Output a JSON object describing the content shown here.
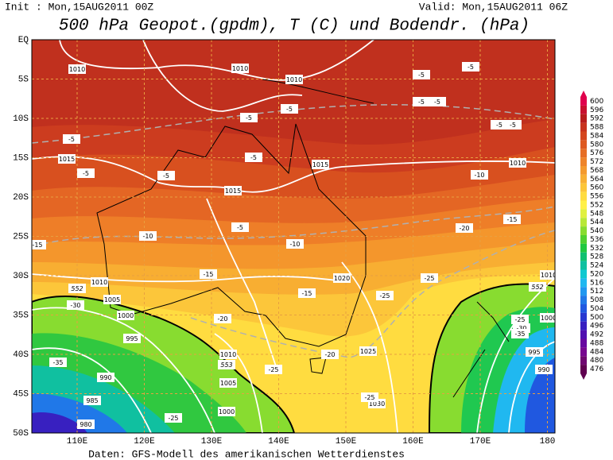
{
  "header": {
    "init": "Init : Mon,15AUG2011 00Z",
    "valid": "Valid: Mon,15AUG2011 06Z",
    "title": "500 hPa Geopot.(gpdm), T (C) und Bodendr. (hPa)",
    "footer": "Daten: GFS-Modell des amerikanischen Wetterdienstes"
  },
  "map": {
    "lat_labels": [
      "EQ",
      "5S",
      "10S",
      "15S",
      "20S",
      "25S",
      "30S",
      "35S",
      "40S",
      "45S",
      "50S"
    ],
    "lon_labels": [
      "110E",
      "120E",
      "130E",
      "140E",
      "150E",
      "160E",
      "170E",
      "180"
    ],
    "contour_labels": [
      "1010",
      "1010",
      "1010",
      "1015",
      "1015",
      "1015",
      "1010",
      "1010",
      "1020",
      "1005",
      "1000",
      "995",
      "990",
      "985",
      "980",
      "1010",
      "1005",
      "1000",
      "1025",
      "1030",
      "1010",
      "1000",
      "995",
      "990",
      "-5",
      "-5",
      "-5",
      "-5",
      "-5",
      "-5",
      "-5",
      "-10",
      "-10",
      "-15",
      "-15",
      "-15",
      "-20",
      "-20",
      "-25",
      "-25",
      "-25",
      "-25",
      "-20",
      "-15",
      "-10",
      "-5",
      "-5",
      "-5",
      "-5",
      "-5",
      "-5",
      "-30",
      "-35",
      "-25",
      "-25",
      "-30",
      "-35",
      "552",
      "552",
      "553"
    ]
  },
  "colorbar": {
    "levels": [
      600,
      596,
      592,
      588,
      584,
      580,
      576,
      572,
      568,
      564,
      560,
      556,
      552,
      548,
      544,
      540,
      536,
      532,
      528,
      524,
      520,
      516,
      512,
      508,
      504,
      500,
      496,
      492,
      488,
      484,
      480,
      476
    ],
    "colors": [
      "#e0004c",
      "#c8102e",
      "#b81c1c",
      "#c8321e",
      "#d4461f",
      "#de5a22",
      "#e66e26",
      "#ee842a",
      "#f49a2e",
      "#f8b034",
      "#fcc63a",
      "#ffdc40",
      "#fff048",
      "#e0f040",
      "#b8e838",
      "#88dc30",
      "#50d030",
      "#20c840",
      "#10c070",
      "#10c0a0",
      "#10c8d0",
      "#20b8f0",
      "#2098f0",
      "#2078e8",
      "#2058e0",
      "#2838d0",
      "#3820c0",
      "#5010b0",
      "#6808a0",
      "#780890",
      "#700870",
      "#600050"
    ]
  }
}
